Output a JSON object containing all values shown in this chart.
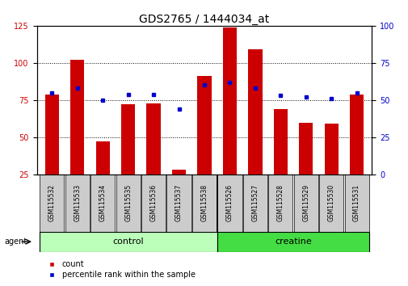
{
  "title": "GDS2765 / 1444034_at",
  "samples": [
    "GSM115532",
    "GSM115533",
    "GSM115534",
    "GSM115535",
    "GSM115536",
    "GSM115537",
    "GSM115538",
    "GSM115526",
    "GSM115527",
    "GSM115528",
    "GSM115529",
    "GSM115530",
    "GSM115531"
  ],
  "counts": [
    79,
    102,
    47,
    72,
    73,
    28,
    91,
    124,
    109,
    69,
    60,
    59,
    79
  ],
  "percentiles": [
    55,
    58,
    50,
    54,
    54,
    44,
    60,
    62,
    58,
    53,
    52,
    51,
    55
  ],
  "control_indices": [
    0,
    1,
    2,
    3,
    4,
    5,
    6
  ],
  "creatine_indices": [
    7,
    8,
    9,
    10,
    11,
    12
  ],
  "ylim_left": [
    25,
    125
  ],
  "ylim_right": [
    0,
    100
  ],
  "yticks_left": [
    25,
    50,
    75,
    100,
    125
  ],
  "yticks_right": [
    0,
    25,
    50,
    75,
    100
  ],
  "bar_color": "#cc0000",
  "dot_color": "#0000cc",
  "control_color": "#bbffbb",
  "creatine_color": "#44dd44",
  "label_bg_color": "#cccccc",
  "agent_label": "agent",
  "control_label": "control",
  "creatine_label": "creatine",
  "legend_count": "count",
  "legend_percentile": "percentile rank within the sample",
  "title_fontsize": 10,
  "tick_fontsize": 7,
  "bar_width": 0.55
}
